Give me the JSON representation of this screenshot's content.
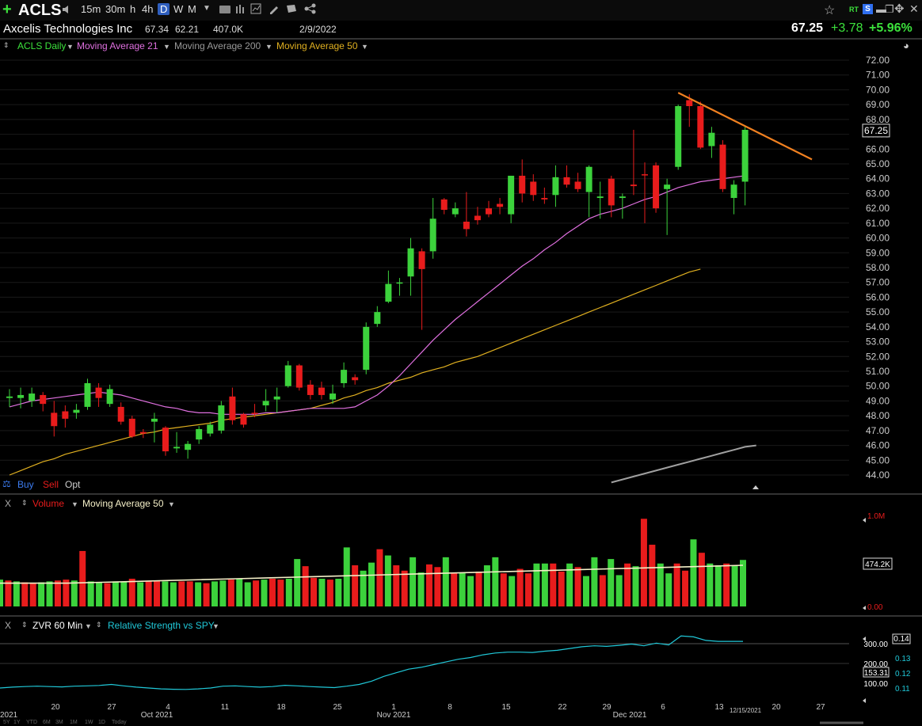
{
  "toolbar": {
    "plus_icon": "+",
    "symbol": "ACLS",
    "timeframes": [
      "15m",
      "30m",
      "h",
      "4h",
      "D",
      "W",
      "M"
    ],
    "active_timeframe": "D",
    "right_icons": [
      "star-icon",
      "RT",
      "S",
      "minus-icon",
      "restore-icon",
      "move-icon",
      "close-icon"
    ]
  },
  "header": {
    "company": "Axcelis Technologies Inc",
    "high": "67.34",
    "low": "62.21",
    "volume": "407.0K",
    "date": "2/9/2022",
    "last": "67.25",
    "change": "+3.78",
    "change_pct": "+5.96%"
  },
  "legend": {
    "series": "ACLS Daily",
    "ma21": "Moving Average 21",
    "ma200": "Moving Average 200",
    "ma50": "Moving Average 50"
  },
  "trade": {
    "buy": "Buy",
    "sell": "Sell",
    "opt": "Opt"
  },
  "volume_panel": {
    "close": "X",
    "label": "Volume",
    "ma_label": "Moving Average 50",
    "top_label": "1.0M",
    "current_label": "474.2K",
    "zero_label": "0.00"
  },
  "rs_panel": {
    "close": "X",
    "label": "ZVR 60 Min",
    "rs_label": "Relative Strength vs SPY",
    "left_ticks": [
      "300.00",
      "200.00",
      "100.00"
    ],
    "current_left": "153.31",
    "right_ticks": [
      "0.14",
      "0.13",
      "0.12",
      "0.11"
    ],
    "current_right": "0.14"
  },
  "price_axis": {
    "ticks": [
      "72.00",
      "71.00",
      "70.00",
      "69.00",
      "68.00",
      "67.00",
      "66.00",
      "65.00",
      "64.00",
      "63.00",
      "62.00",
      "61.00",
      "60.00",
      "59.00",
      "58.00",
      "57.00",
      "56.00",
      "55.00",
      "54.00",
      "53.00",
      "52.00",
      "51.00",
      "50.00",
      "49.00",
      "48.00",
      "47.00",
      "46.00",
      "45.00",
      "44.00"
    ],
    "current": "67.25"
  },
  "x_axis": {
    "day_labels": [
      "20",
      "27",
      "4",
      "11",
      "18",
      "25",
      "1",
      "8",
      "15",
      "22",
      "29",
      "6",
      "13",
      "20",
      "27"
    ],
    "month_labels": [
      "Oct 2021",
      "Nov 2021",
      "Dec 2021"
    ],
    "left_cut": "2021",
    "cursor_date": "12/15/2021",
    "range_buttons": [
      "5Y",
      "1Y",
      "YTD",
      "6M",
      "3M",
      "1M",
      "1W",
      "1D",
      "Today"
    ]
  },
  "colors": {
    "up": "#3cd23c",
    "down": "#e81c1c",
    "ma21": "#e070e0",
    "ma50": "#e0b020",
    "ma200": "#a0a0a0",
    "trendline": "#f08020",
    "rs": "#20c8d8",
    "vol_ma": "#f5f0c8",
    "positive": "#3ce23c"
  },
  "chart_data": {
    "type": "candlestick",
    "ylim": [
      44,
      72
    ],
    "candles": [
      {
        "o": 49.2,
        "h": 49.8,
        "l": 48.6,
        "c": 49.3,
        "up": true
      },
      {
        "o": 49.2,
        "h": 49.9,
        "l": 48.5,
        "c": 49.4,
        "up": true
      },
      {
        "o": 49.0,
        "h": 49.9,
        "l": 48.6,
        "c": 49.5,
        "up": true
      },
      {
        "o": 49.4,
        "h": 49.6,
        "l": 48.3,
        "c": 48.8,
        "up": false
      },
      {
        "o": 48.2,
        "h": 49.0,
        "l": 46.6,
        "c": 47.3,
        "up": false
      },
      {
        "o": 47.8,
        "h": 48.7,
        "l": 47.2,
        "c": 48.3,
        "up": false
      },
      {
        "o": 48.2,
        "h": 48.8,
        "l": 47.8,
        "c": 48.4,
        "up": true
      },
      {
        "o": 48.6,
        "h": 50.5,
        "l": 48.4,
        "c": 50.2,
        "up": true
      },
      {
        "o": 49.9,
        "h": 50.2,
        "l": 48.6,
        "c": 49.2,
        "up": false
      },
      {
        "o": 48.8,
        "h": 50.1,
        "l": 48.6,
        "c": 49.8,
        "up": true
      },
      {
        "o": 48.6,
        "h": 48.9,
        "l": 47.4,
        "c": 47.6,
        "up": false
      },
      {
        "o": 47.8,
        "h": 48.0,
        "l": 46.5,
        "c": 46.6,
        "up": false
      },
      {
        "o": 46.8,
        "h": 47.1,
        "l": 46.5,
        "c": 46.9,
        "up": false
      },
      {
        "o": 47.6,
        "h": 48.2,
        "l": 46.2,
        "c": 47.8,
        "up": true
      },
      {
        "o": 47.2,
        "h": 47.3,
        "l": 45.3,
        "c": 45.6,
        "up": false
      },
      {
        "o": 45.8,
        "h": 46.9,
        "l": 45.5,
        "c": 45.9,
        "up": true
      },
      {
        "o": 45.7,
        "h": 46.3,
        "l": 45.1,
        "c": 46.1,
        "up": true
      },
      {
        "o": 46.4,
        "h": 47.3,
        "l": 46.1,
        "c": 47.1,
        "up": true
      },
      {
        "o": 46.8,
        "h": 47.6,
        "l": 46.6,
        "c": 47.4,
        "up": true
      },
      {
        "o": 47.0,
        "h": 49.0,
        "l": 46.8,
        "c": 48.7,
        "up": true
      },
      {
        "o": 49.3,
        "h": 49.9,
        "l": 47.4,
        "c": 47.7,
        "up": false
      },
      {
        "o": 48.1,
        "h": 48.2,
        "l": 47.2,
        "c": 47.4,
        "up": false
      },
      {
        "o": 48.2,
        "h": 48.8,
        "l": 47.9,
        "c": 48.2,
        "up": false
      },
      {
        "o": 48.7,
        "h": 49.8,
        "l": 48.3,
        "c": 49.0,
        "up": true
      },
      {
        "o": 49.1,
        "h": 49.9,
        "l": 48.2,
        "c": 49.3,
        "up": true
      },
      {
        "o": 50.0,
        "h": 51.7,
        "l": 49.9,
        "c": 51.4,
        "up": true
      },
      {
        "o": 51.4,
        "h": 51.5,
        "l": 49.7,
        "c": 49.9,
        "up": false
      },
      {
        "o": 50.1,
        "h": 50.4,
        "l": 49.1,
        "c": 49.4,
        "up": false
      },
      {
        "o": 49.9,
        "h": 50.3,
        "l": 49.1,
        "c": 49.4,
        "up": false
      },
      {
        "o": 49.1,
        "h": 50.1,
        "l": 48.8,
        "c": 49.5,
        "up": true
      },
      {
        "o": 50.2,
        "h": 51.6,
        "l": 49.9,
        "c": 51.1,
        "up": true
      },
      {
        "o": 50.6,
        "h": 50.8,
        "l": 50.1,
        "c": 50.4,
        "up": false
      },
      {
        "o": 51.1,
        "h": 54.3,
        "l": 50.8,
        "c": 54.0,
        "up": true
      },
      {
        "o": 54.2,
        "h": 55.4,
        "l": 54.0,
        "c": 55.0,
        "up": true
      },
      {
        "o": 55.7,
        "h": 57.8,
        "l": 55.6,
        "c": 56.9,
        "up": true
      },
      {
        "o": 57.0,
        "h": 57.3,
        "l": 56.1,
        "c": 57.0,
        "up": true
      },
      {
        "o": 57.4,
        "h": 60.0,
        "l": 56.1,
        "c": 59.3,
        "up": true
      },
      {
        "o": 59.1,
        "h": 59.3,
        "l": 53.8,
        "c": 57.9,
        "up": false
      },
      {
        "o": 59.1,
        "h": 62.7,
        "l": 58.6,
        "c": 61.3,
        "up": true
      },
      {
        "o": 62.6,
        "h": 62.7,
        "l": 61.6,
        "c": 61.9,
        "up": false
      },
      {
        "o": 61.6,
        "h": 62.4,
        "l": 61.4,
        "c": 62.0,
        "up": true
      },
      {
        "o": 61.1,
        "h": 63.1,
        "l": 60.1,
        "c": 60.6,
        "up": false
      },
      {
        "o": 61.2,
        "h": 62.1,
        "l": 60.9,
        "c": 61.5,
        "up": false
      },
      {
        "o": 61.6,
        "h": 62.5,
        "l": 61.4,
        "c": 62.0,
        "up": false
      },
      {
        "o": 62.3,
        "h": 62.7,
        "l": 61.6,
        "c": 62.1,
        "up": false
      },
      {
        "o": 61.6,
        "h": 64.2,
        "l": 61.0,
        "c": 64.2,
        "up": true
      },
      {
        "o": 64.2,
        "h": 65.3,
        "l": 62.4,
        "c": 63.0,
        "up": false
      },
      {
        "o": 63.8,
        "h": 64.3,
        "l": 62.5,
        "c": 62.9,
        "up": false
      },
      {
        "o": 62.7,
        "h": 63.4,
        "l": 62.3,
        "c": 62.6,
        "up": false
      },
      {
        "o": 62.9,
        "h": 64.9,
        "l": 62.1,
        "c": 64.1,
        "up": true
      },
      {
        "o": 64.1,
        "h": 64.9,
        "l": 63.4,
        "c": 63.6,
        "up": false
      },
      {
        "o": 63.8,
        "h": 64.4,
        "l": 63.1,
        "c": 63.3,
        "up": false
      },
      {
        "o": 63.1,
        "h": 64.9,
        "l": 61.4,
        "c": 64.8,
        "up": true
      },
      {
        "o": 62.8,
        "h": 63.8,
        "l": 61.3,
        "c": 62.7,
        "up": true
      },
      {
        "o": 64.0,
        "h": 64.2,
        "l": 61.4,
        "c": 62.2,
        "up": false
      },
      {
        "o": 62.8,
        "h": 63.0,
        "l": 61.3,
        "c": 62.7,
        "up": true
      },
      {
        "o": 63.6,
        "h": 67.3,
        "l": 62.9,
        "c": 63.5,
        "up": false
      },
      {
        "o": 64.3,
        "h": 65.1,
        "l": 61.0,
        "c": 64.3,
        "up": false
      },
      {
        "o": 64.9,
        "h": 65.1,
        "l": 61.7,
        "c": 62.0,
        "up": false
      },
      {
        "o": 63.3,
        "h": 64.0,
        "l": 60.2,
        "c": 63.6,
        "up": true
      },
      {
        "o": 64.8,
        "h": 69.0,
        "l": 64.6,
        "c": 68.9,
        "up": true
      },
      {
        "o": 69.3,
        "h": 69.7,
        "l": 67.5,
        "c": 68.9,
        "up": false
      },
      {
        "o": 68.9,
        "h": 69.2,
        "l": 66.0,
        "c": 66.1,
        "up": false
      },
      {
        "o": 66.2,
        "h": 67.5,
        "l": 65.4,
        "c": 67.1,
        "up": true
      },
      {
        "o": 66.3,
        "h": 66.6,
        "l": 63.1,
        "c": 63.3,
        "up": false
      },
      {
        "o": 62.7,
        "h": 63.9,
        "l": 61.6,
        "c": 63.6,
        "up": true
      },
      {
        "o": 63.8,
        "h": 67.5,
        "l": 62.2,
        "c": 67.3,
        "up": true
      }
    ],
    "ma21": [
      48.6,
      48.8,
      49.0,
      49.1,
      49.2,
      49.3,
      49.4,
      49.5,
      49.6,
      49.5,
      49.4,
      49.2,
      49.0,
      48.8,
      48.6,
      48.5,
      48.3,
      48.2,
      48.2,
      48.1,
      48.1,
      48.1,
      48.1,
      48.2,
      48.2,
      48.3,
      48.4,
      48.5,
      48.5,
      48.5,
      48.5,
      48.6,
      49.0,
      49.4,
      50.0,
      50.7,
      51.5,
      52.3,
      53.1,
      53.8,
      54.5,
      55.1,
      55.7,
      56.3,
      56.9,
      57.5,
      58.1,
      58.6,
      59.2,
      59.7,
      60.3,
      60.8,
      61.3,
      61.6,
      61.8,
      62.0,
      62.3,
      62.6,
      62.8,
      63.1,
      63.4,
      63.6,
      63.8,
      63.9,
      64.0,
      64.1,
      64.2
    ],
    "ma50": [
      44.0,
      44.3,
      44.6,
      44.9,
      45.1,
      45.4,
      45.6,
      45.8,
      46.0,
      46.2,
      46.4,
      46.6,
      46.8,
      46.9,
      47.1,
      47.2,
      47.3,
      47.4,
      47.5,
      47.7,
      47.8,
      47.9,
      48.0,
      48.1,
      48.2,
      48.3,
      48.4,
      48.5,
      48.7,
      48.9,
      49.2,
      49.4,
      49.7,
      49.9,
      50.2,
      50.4,
      50.6,
      50.9,
      51.1,
      51.3,
      51.6,
      51.8,
      52.0,
      52.3,
      52.6,
      52.9,
      53.2,
      53.5,
      53.8,
      54.1,
      54.4,
      54.7,
      55.0,
      55.3,
      55.6,
      55.9,
      56.2,
      56.5,
      56.8,
      57.1,
      57.4,
      57.7,
      57.9
    ],
    "ma200": [
      43.5,
      43.7,
      43.9,
      44.1,
      44.3,
      44.5,
      44.7,
      44.9,
      45.1,
      45.3,
      45.5,
      45.7,
      45.9,
      46.0
    ],
    "trendline": {
      "start_index": 60,
      "start_value": 69.8,
      "end_index": 72,
      "end_value": 65.3
    },
    "volume": [
      0.3,
      0.29,
      0.28,
      0.27,
      0.26,
      0.27,
      0.28,
      0.29,
      0.3,
      0.29,
      0.62,
      0.28,
      0.27,
      0.26,
      0.28,
      0.27,
      0.31,
      0.27,
      0.28,
      0.29,
      0.28,
      0.27,
      0.28,
      0.28,
      0.27,
      0.26,
      0.28,
      0.29,
      0.3,
      0.31,
      0.27,
      0.29,
      0.3,
      0.31,
      0.3,
      0.31,
      0.53,
      0.45,
      0.32,
      0.31,
      0.3,
      0.31,
      0.66,
      0.46,
      0.4,
      0.49,
      0.64,
      0.57,
      0.46,
      0.4,
      0.55,
      0.38,
      0.47,
      0.44,
      0.55,
      0.38,
      0.38,
      0.34,
      0.39,
      0.46,
      0.55,
      0.37,
      0.34,
      0.42,
      0.37,
      0.48,
      0.48,
      0.48,
      0.39,
      0.48,
      0.44,
      0.34,
      0.55,
      0.35,
      0.53,
      0.35,
      0.48,
      0.45,
      0.98,
      0.69,
      0.48,
      0.37,
      0.48,
      0.4,
      0.75,
      0.6,
      0.48,
      0.46,
      0.48,
      0.46,
      0.52
    ],
    "vol_ma": [
      0.26,
      0.26,
      0.26,
      0.27,
      0.28,
      0.29,
      0.3,
      0.31,
      0.32,
      0.33,
      0.34,
      0.35,
      0.36,
      0.37,
      0.38,
      0.39,
      0.4,
      0.41,
      0.42,
      0.43,
      0.44,
      0.45,
      0.46
    ],
    "rs": [
      0.11,
      0.1105,
      0.1108,
      0.111,
      0.1108,
      0.1106,
      0.111,
      0.1112,
      0.1114,
      0.112,
      0.1112,
      0.1105,
      0.11,
      0.1095,
      0.1093,
      0.1092,
      0.1095,
      0.11,
      0.111,
      0.1112,
      0.1108,
      0.1105,
      0.1108,
      0.1115,
      0.1112,
      0.1108,
      0.1105,
      0.1102,
      0.111,
      0.112,
      0.1138,
      0.1165,
      0.1185,
      0.1205,
      0.1215,
      0.123,
      0.1245,
      0.126,
      0.127,
      0.1285,
      0.1295,
      0.13,
      0.13,
      0.1298,
      0.1305,
      0.131,
      0.132,
      0.133,
      0.1335,
      0.1332,
      0.1338,
      0.1345,
      0.1335,
      0.135,
      0.134,
      0.139,
      0.1385,
      0.1365,
      0.136,
      0.136,
      0.136
    ]
  }
}
